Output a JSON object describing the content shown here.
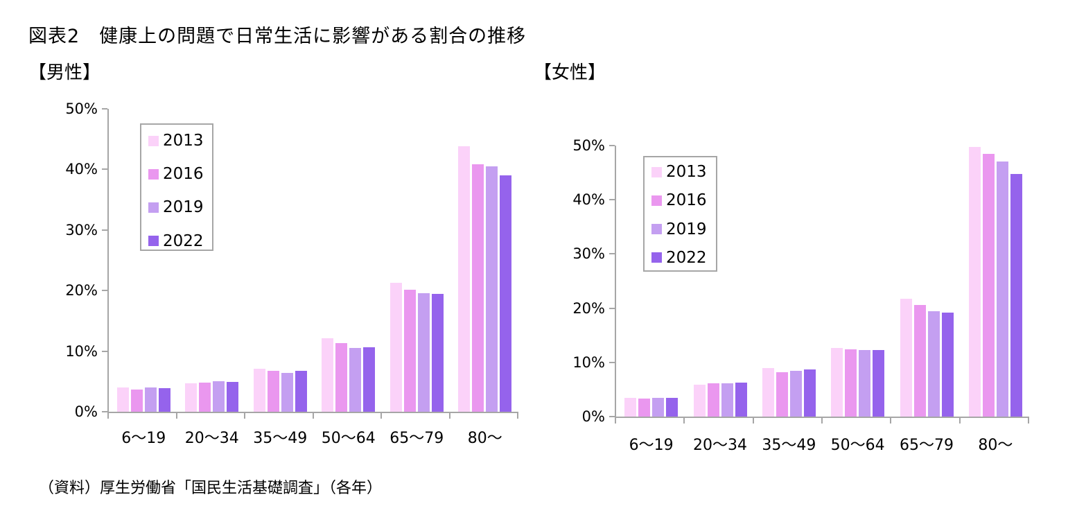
{
  "page": {
    "title": "図表2　健康上の問題で日常生活に影響がある割合の推移",
    "source_note": "（資料）厚生労働省「国民生活基礎調査」（各年）"
  },
  "colors": {
    "axis": "#a6a6a6",
    "text": "#000000",
    "legend_border": "#a6a6a6",
    "series": {
      "2013": "#fbd2f9",
      "2016": "#ea97ef",
      "2019": "#c49ff1",
      "2022": "#9563ec"
    }
  },
  "chart_data": [
    {
      "type": "bar",
      "title": "【男性】",
      "categories": [
        "6〜19",
        "20〜34",
        "35〜49",
        "50〜64",
        "65〜79",
        "80〜"
      ],
      "series": [
        {
          "name": "2013",
          "color": "#fbd2f9",
          "values": [
            4.0,
            4.7,
            7.1,
            12.1,
            21.3,
            43.8
          ]
        },
        {
          "name": "2016",
          "color": "#ea97ef",
          "values": [
            3.7,
            4.8,
            6.7,
            11.3,
            20.1,
            40.9
          ]
        },
        {
          "name": "2019",
          "color": "#c49ff1",
          "values": [
            4.0,
            5.0,
            6.4,
            10.5,
            19.6,
            40.5
          ]
        },
        {
          "name": "2022",
          "color": "#9563ec",
          "values": [
            3.9,
            4.9,
            6.8,
            10.7,
            19.4,
            39.0
          ]
        }
      ],
      "xlabel": "",
      "ylabel": "",
      "ylim": [
        0,
        50
      ],
      "ytick_step": 10,
      "yticks": [
        "0%",
        "10%",
        "20%",
        "30%",
        "40%",
        "50%"
      ],
      "grid": false,
      "legend_position": "upper-left-inside",
      "legend_entries": [
        "2013",
        "2016",
        "2019",
        "2022"
      ]
    },
    {
      "type": "bar",
      "title": "【女性】",
      "categories": [
        "6〜19",
        "20〜34",
        "35〜49",
        "50〜64",
        "65〜79",
        "80〜"
      ],
      "series": [
        {
          "name": "2013",
          "color": "#fbd2f9",
          "values": [
            3.4,
            5.9,
            8.9,
            12.7,
            21.8,
            49.7
          ]
        },
        {
          "name": "2016",
          "color": "#ea97ef",
          "values": [
            3.3,
            6.1,
            8.2,
            12.4,
            20.6,
            48.5
          ]
        },
        {
          "name": "2019",
          "color": "#c49ff1",
          "values": [
            3.4,
            6.2,
            8.5,
            12.3,
            19.4,
            47.1
          ]
        },
        {
          "name": "2022",
          "color": "#9563ec",
          "values": [
            3.5,
            6.3,
            8.7,
            12.3,
            19.2,
            44.8
          ]
        }
      ],
      "xlabel": "",
      "ylabel": "",
      "ylim": [
        0,
        50
      ],
      "ytick_step": 10,
      "yticks": [
        "0%",
        "10%",
        "20%",
        "30%",
        "40%",
        "50%"
      ],
      "grid": false,
      "legend_position": "upper-left-inside",
      "legend_entries": [
        "2013",
        "2016",
        "2019",
        "2022"
      ]
    }
  ]
}
